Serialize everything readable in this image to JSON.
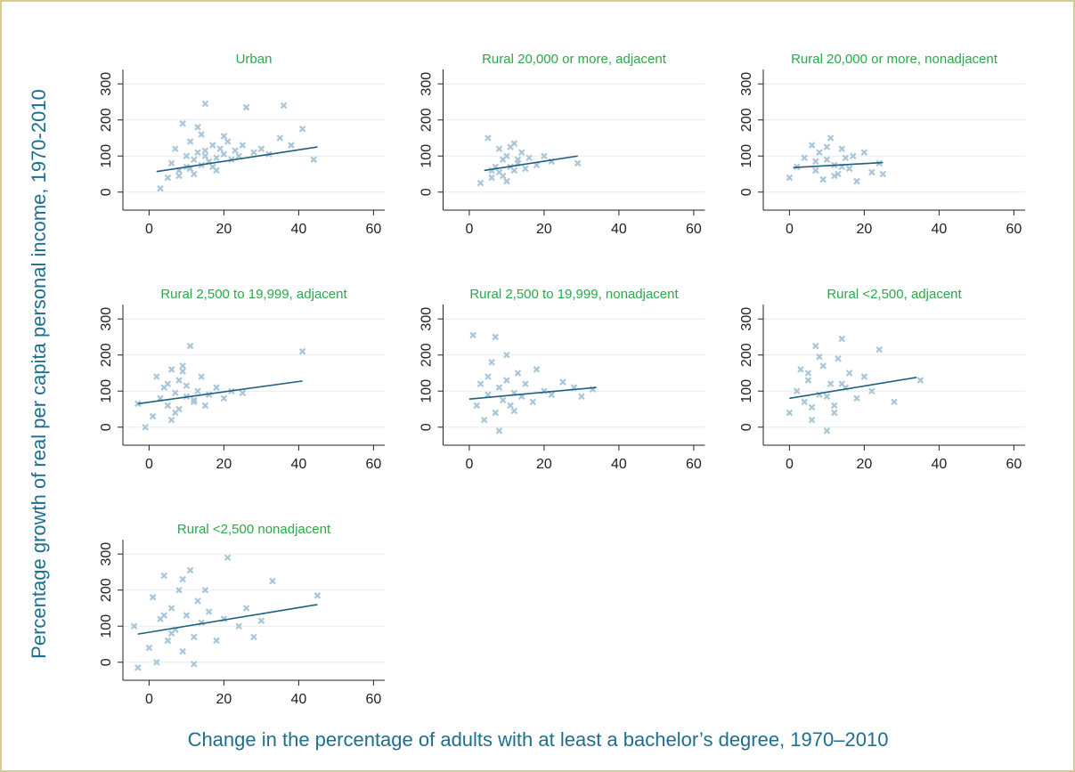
{
  "x_label": "Change in the percentage of adults with at least a bachelor’s degree, 1970–2010",
  "y_label": "Percentage growth of real per capita personal income, 1970-2010",
  "chart_data": [
    {
      "type": "scatter",
      "title": "Urban",
      "series": [
        {
          "color": "#a9c6d8",
          "x": [
            3,
            5,
            6,
            7,
            8,
            9,
            10,
            10,
            11,
            12,
            12,
            13,
            14,
            14,
            15,
            15,
            16,
            17,
            18,
            18,
            19,
            20,
            21,
            22,
            23,
            24,
            25,
            26,
            28,
            30,
            32,
            35,
            36,
            38,
            41,
            44,
            8,
            11,
            13,
            17,
            20,
            15
          ],
          "values": [
            10,
            40,
            80,
            120,
            60,
            190,
            100,
            70,
            140,
            90,
            50,
            110,
            160,
            75,
            245,
            100,
            85,
            130,
            95,
            60,
            120,
            105,
            140,
            90,
            115,
            100,
            130,
            235,
            110,
            120,
            105,
            150,
            240,
            130,
            175,
            90,
            45,
            65,
            180,
            70,
            155,
            115
          ]
        }
      ],
      "fit": {
        "color": "#1f5f7f",
        "x": [
          2,
          45
        ],
        "values": [
          57,
          125
        ]
      },
      "xlim": [
        -7,
        63
      ],
      "xticks": [
        0,
        20,
        40,
        60
      ],
      "ylim": [
        -50,
        340
      ],
      "yticks": [
        0,
        100,
        200,
        300
      ],
      "grid": true
    },
    {
      "type": "scatter",
      "title": "Rural 20,000 or more, adjacent",
      "series": [
        {
          "color": "#a9c6d8",
          "x": [
            3,
            5,
            6,
            7,
            8,
            8,
            9,
            10,
            10,
            11,
            12,
            12,
            13,
            14,
            15,
            16,
            18,
            20,
            22,
            29,
            6,
            9,
            11,
            13
          ],
          "values": [
            25,
            150,
            40,
            70,
            120,
            55,
            90,
            30,
            100,
            70,
            135,
            60,
            80,
            110,
            65,
            95,
            75,
            100,
            85,
            80,
            60,
            45,
            125,
            90
          ]
        }
      ],
      "fit": {
        "color": "#1f5f7f",
        "x": [
          4,
          29
        ],
        "values": [
          60,
          100
        ]
      },
      "xlim": [
        -7,
        63
      ],
      "xticks": [
        0,
        20,
        40,
        60
      ],
      "ylim": [
        -50,
        340
      ],
      "yticks": [
        0,
        100,
        200,
        300
      ],
      "grid": true
    },
    {
      "type": "scatter",
      "title": "Rural 20,000 or more, nonadjacent",
      "series": [
        {
          "color": "#a9c6d8",
          "x": [
            0,
            2,
            4,
            6,
            7,
            8,
            9,
            10,
            11,
            12,
            13,
            14,
            15,
            16,
            17,
            18,
            20,
            22,
            24,
            25,
            7,
            10,
            12,
            14
          ],
          "values": [
            40,
            70,
            95,
            130,
            60,
            110,
            35,
            90,
            150,
            75,
            50,
            120,
            95,
            65,
            100,
            30,
            110,
            55,
            80,
            50,
            85,
            125,
            45,
            70
          ]
        }
      ],
      "fit": {
        "color": "#1f5f7f",
        "x": [
          1,
          25
        ],
        "values": [
          68,
          82
        ]
      },
      "xlim": [
        -7,
        63
      ],
      "xticks": [
        0,
        20,
        40,
        60
      ],
      "ylim": [
        -50,
        340
      ],
      "yticks": [
        0,
        100,
        200,
        300
      ],
      "grid": true
    },
    {
      "type": "scatter",
      "title": "Rural 2,500 to 19,999, adjacent",
      "series": [
        {
          "color": "#a9c6d8",
          "x": [
            -3,
            -1,
            1,
            2,
            3,
            4,
            5,
            6,
            6,
            7,
            8,
            8,
            9,
            10,
            10,
            11,
            12,
            13,
            14,
            15,
            16,
            18,
            20,
            22,
            25,
            41,
            5,
            7,
            9,
            12
          ],
          "values": [
            65,
            0,
            30,
            140,
            80,
            110,
            60,
            160,
            20,
            95,
            130,
            50,
            170,
            85,
            115,
            225,
            70,
            100,
            140,
            60,
            90,
            110,
            80,
            100,
            95,
            210,
            120,
            40,
            155,
            75
          ]
        }
      ],
      "fit": {
        "color": "#1f5f7f",
        "x": [
          -3,
          41
        ],
        "values": [
          65,
          128
        ]
      },
      "xlim": [
        -7,
        63
      ],
      "xticks": [
        0,
        20,
        40,
        60
      ],
      "ylim": [
        -50,
        340
      ],
      "yticks": [
        0,
        100,
        200,
        300
      ],
      "grid": true
    },
    {
      "type": "scatter",
      "title": "Rural 2,500 to 19,999, nonadjacent",
      "series": [
        {
          "color": "#a9c6d8",
          "x": [
            1,
            2,
            3,
            4,
            5,
            6,
            7,
            7,
            8,
            9,
            10,
            10,
            11,
            12,
            13,
            14,
            15,
            17,
            18,
            20,
            22,
            25,
            28,
            30,
            33,
            8,
            5,
            12
          ],
          "values": [
            255,
            60,
            120,
            20,
            90,
            180,
            250,
            40,
            110,
            75,
            200,
            130,
            60,
            95,
            150,
            85,
            120,
            70,
            160,
            100,
            90,
            125,
            110,
            85,
            105,
            -10,
            140,
            45
          ]
        }
      ],
      "fit": {
        "color": "#1f5f7f",
        "x": [
          0,
          34
        ],
        "values": [
          78,
          110
        ]
      },
      "xlim": [
        -7,
        63
      ],
      "xticks": [
        0,
        20,
        40,
        60
      ],
      "ylim": [
        -50,
        340
      ],
      "yticks": [
        0,
        100,
        200,
        300
      ],
      "grid": true
    },
    {
      "type": "scatter",
      "title": "Rural <2,500, adjacent",
      "series": [
        {
          "color": "#a9c6d8",
          "x": [
            0,
            2,
            3,
            4,
            5,
            6,
            7,
            8,
            9,
            10,
            11,
            12,
            13,
            14,
            15,
            16,
            18,
            20,
            22,
            24,
            28,
            35,
            6,
            8,
            10,
            14,
            5,
            12
          ],
          "values": [
            40,
            100,
            160,
            70,
            130,
            20,
            225,
            90,
            170,
            -10,
            120,
            60,
            190,
            245,
            110,
            150,
            80,
            140,
            100,
            215,
            70,
            130,
            55,
            195,
            85,
            120,
            150,
            40
          ]
        }
      ],
      "fit": {
        "color": "#1f5f7f",
        "x": [
          0,
          34
        ],
        "values": [
          80,
          138
        ]
      },
      "xlim": [
        -7,
        63
      ],
      "xticks": [
        0,
        20,
        40,
        60
      ],
      "ylim": [
        -50,
        340
      ],
      "yticks": [
        0,
        100,
        200,
        300
      ],
      "grid": true
    },
    {
      "type": "scatter",
      "title": "Rural <2,500 nonadjacent",
      "series": [
        {
          "color": "#a9c6d8",
          "x": [
            -4,
            -3,
            0,
            1,
            2,
            3,
            4,
            5,
            6,
            7,
            8,
            9,
            10,
            11,
            12,
            13,
            14,
            15,
            16,
            18,
            20,
            21,
            24,
            26,
            28,
            30,
            33,
            45,
            6,
            9,
            12,
            4
          ],
          "values": [
            100,
            -15,
            40,
            180,
            0,
            120,
            240,
            60,
            150,
            90,
            200,
            30,
            130,
            255,
            70,
            170,
            110,
            200,
            140,
            60,
            120,
            290,
            100,
            150,
            70,
            115,
            225,
            185,
            80,
            230,
            -5,
            130
          ]
        }
      ],
      "fit": {
        "color": "#1f5f7f",
        "x": [
          -3,
          45
        ],
        "values": [
          78,
          160
        ]
      },
      "xlim": [
        -7,
        63
      ],
      "xticks": [
        0,
        20,
        40,
        60
      ],
      "ylim": [
        -50,
        340
      ],
      "yticks": [
        0,
        100,
        200,
        300
      ],
      "grid": true
    }
  ]
}
